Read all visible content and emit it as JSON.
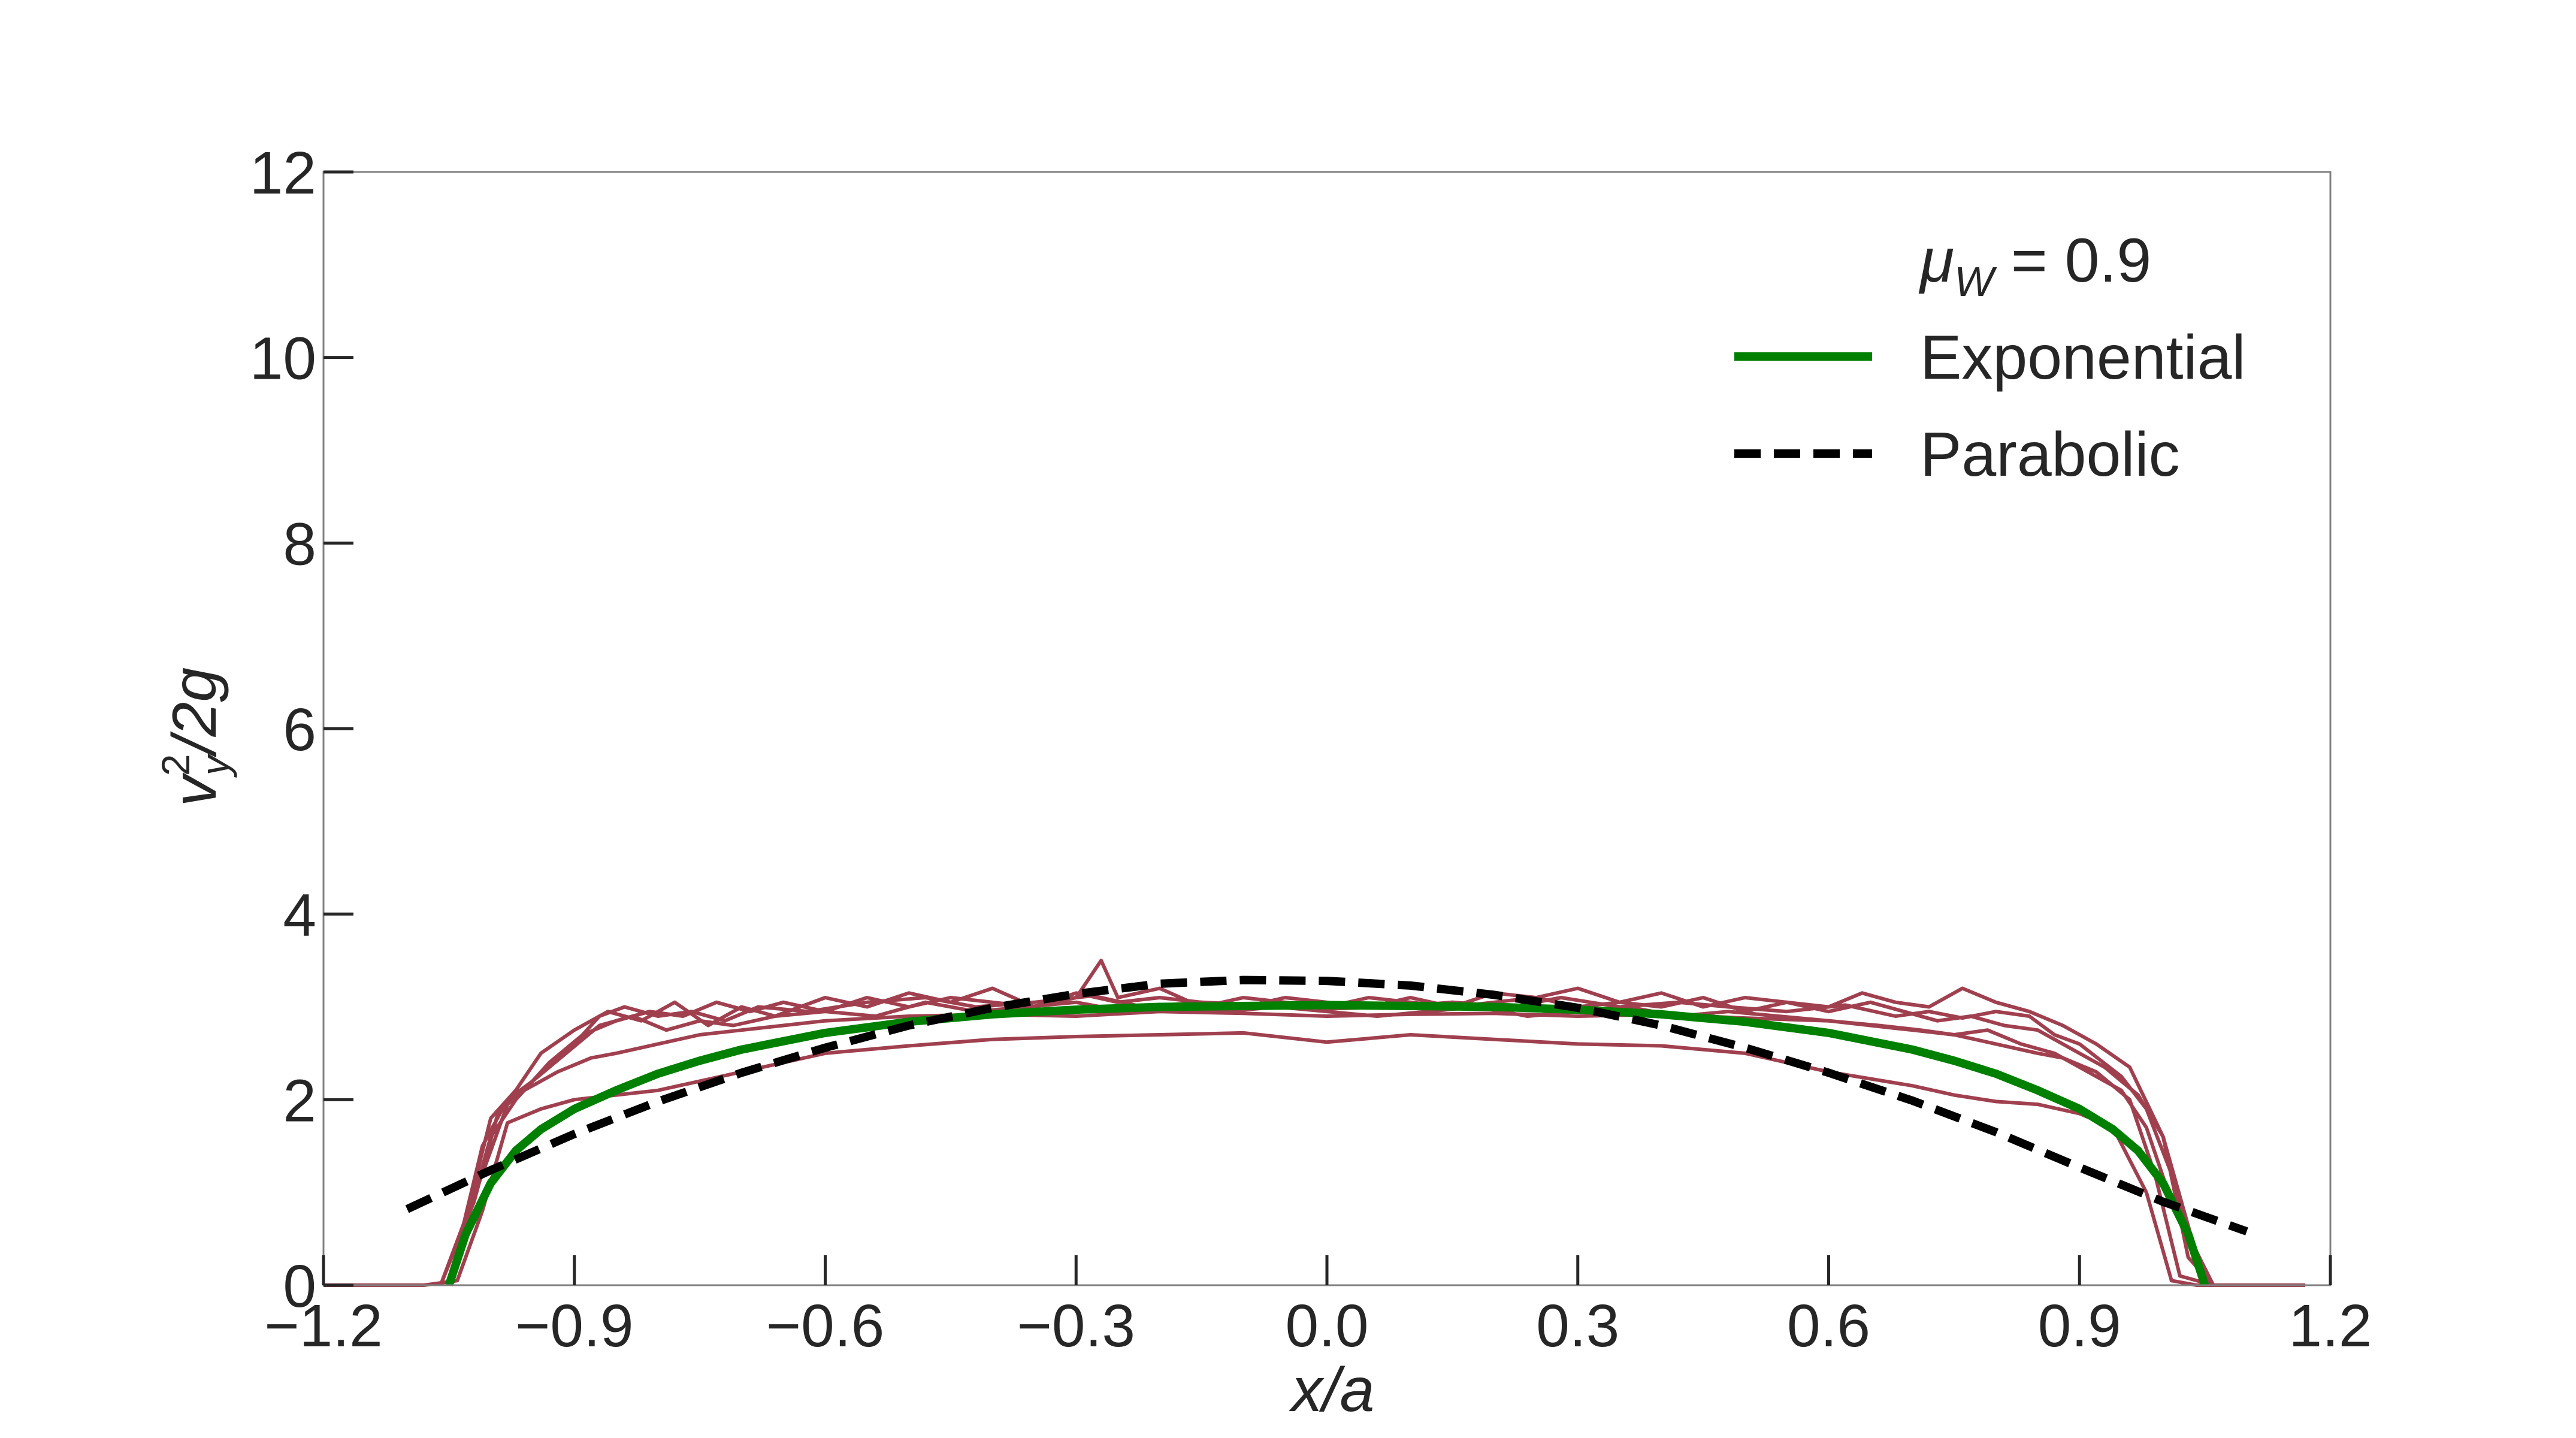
{
  "chart_data": {
    "type": "line",
    "xlabel": "x/a",
    "ylabel": "v_y^2/2g",
    "xlim": [
      -1.2,
      1.2
    ],
    "ylim": [
      0,
      12
    ],
    "xticks": [
      "−1.2",
      "−0.9",
      "−0.6",
      "−0.3",
      "0.0",
      "0.3",
      "0.6",
      "0.9",
      "1.2"
    ],
    "yticks": [
      "0",
      "2",
      "4",
      "6",
      "8",
      "10",
      "12"
    ],
    "grid": false,
    "legend": {
      "placement": "top-right",
      "title": "μ_W = 0.9",
      "entries": [
        "Exponential",
        "Parabolic"
      ]
    },
    "colors": {
      "simulation": "#a0404f",
      "exponential": "#008000",
      "parabolic": "#000000",
      "axes": "#262626",
      "frame": "#808080"
    },
    "series": [
      {
        "name": "Exponential",
        "style": "solid",
        "x": [
          -1.05,
          -1.03,
          -1.0,
          -0.97,
          -0.94,
          -0.9,
          -0.85,
          -0.8,
          -0.75,
          -0.7,
          -0.6,
          -0.5,
          -0.4,
          -0.3,
          -0.2,
          -0.1,
          0.0,
          0.1,
          0.2,
          0.3,
          0.4,
          0.5,
          0.6,
          0.7,
          0.75,
          0.8,
          0.85,
          0.9,
          0.94,
          0.97,
          1.0,
          1.03,
          1.05
        ],
        "y": [
          0.0,
          0.55,
          1.1,
          1.45,
          1.68,
          1.9,
          2.1,
          2.28,
          2.42,
          2.54,
          2.72,
          2.84,
          2.92,
          2.97,
          3.0,
          3.01,
          3.02,
          3.01,
          3.0,
          2.97,
          2.92,
          2.84,
          2.72,
          2.54,
          2.42,
          2.28,
          2.1,
          1.9,
          1.68,
          1.45,
          1.1,
          0.55,
          0.0
        ]
      },
      {
        "name": "Parabolic",
        "style": "dashed",
        "x": [
          -1.1,
          -1.0,
          -0.9,
          -0.8,
          -0.7,
          -0.6,
          -0.5,
          -0.4,
          -0.3,
          -0.2,
          -0.1,
          0.0,
          0.1,
          0.2,
          0.3,
          0.4,
          0.5,
          0.6,
          0.7,
          0.8,
          0.9,
          1.0,
          1.1
        ],
        "y": [
          0.82,
          1.24,
          1.63,
          1.98,
          2.29,
          2.56,
          2.8,
          2.99,
          3.14,
          3.25,
          3.29,
          3.28,
          3.23,
          3.13,
          2.99,
          2.8,
          2.56,
          2.29,
          1.99,
          1.65,
          1.27,
          0.9,
          0.58
        ]
      },
      {
        "style": "simulation",
        "x": [
          -1.2,
          -1.08,
          -1.04,
          -1.01,
          -0.98,
          -0.94,
          -0.9,
          -0.85,
          -0.8,
          -0.75,
          -0.7,
          -0.6,
          -0.5,
          -0.4,
          -0.3,
          -0.2,
          -0.1,
          0.0,
          0.1,
          0.2,
          0.3,
          0.4,
          0.5,
          0.6,
          0.7,
          0.75,
          0.8,
          0.85,
          0.9,
          0.94,
          0.98,
          1.01,
          1.04,
          1.08,
          1.17
        ],
        "y": [
          0.0,
          0.0,
          0.05,
          0.8,
          1.75,
          1.9,
          2.0,
          2.05,
          2.1,
          2.2,
          2.3,
          2.5,
          2.58,
          2.65,
          2.68,
          2.7,
          2.72,
          2.62,
          2.7,
          2.65,
          2.6,
          2.58,
          2.5,
          2.3,
          2.15,
          2.05,
          1.98,
          1.95,
          1.85,
          1.7,
          1.0,
          0.05,
          0.0,
          0.0,
          0.0
        ]
      },
      {
        "style": "simulation",
        "x": [
          -1.06,
          -1.02,
          -0.99,
          -0.96,
          -0.92,
          -0.88,
          -0.85,
          -0.8,
          -0.75,
          -0.7,
          -0.65,
          -0.6,
          -0.5,
          -0.4,
          -0.3,
          -0.2,
          -0.1,
          0.0,
          0.1,
          0.2,
          0.3,
          0.4,
          0.5,
          0.6,
          0.65,
          0.7,
          0.75,
          0.8,
          0.85,
          0.88,
          0.92,
          0.96,
          0.99,
          1.02,
          1.06
        ],
        "y": [
          0.0,
          0.9,
          1.9,
          2.1,
          2.3,
          2.45,
          2.5,
          2.6,
          2.7,
          2.75,
          2.8,
          2.85,
          2.9,
          2.92,
          2.9,
          2.95,
          2.93,
          2.9,
          2.92,
          2.93,
          2.9,
          2.92,
          2.88,
          2.85,
          2.8,
          2.75,
          2.7,
          2.6,
          2.5,
          2.45,
          2.3,
          2.0,
          1.2,
          0.1,
          0.0
        ]
      },
      {
        "style": "simulation",
        "x": [
          -1.05,
          -1.01,
          -0.98,
          -0.95,
          -0.9,
          -0.87,
          -0.84,
          -0.8,
          -0.76,
          -0.72,
          -0.68,
          -0.62,
          -0.55,
          -0.48,
          -0.42,
          -0.35,
          -0.28,
          -0.22,
          -0.15,
          -0.08,
          0.0,
          0.08,
          0.15,
          0.22,
          0.28,
          0.35,
          0.42,
          0.48,
          0.55,
          0.62,
          0.68,
          0.72,
          0.76,
          0.8,
          0.84,
          0.87,
          0.9,
          0.95,
          0.98,
          1.01,
          1.05
        ],
        "y": [
          0.0,
          1.5,
          2.0,
          2.2,
          2.6,
          2.9,
          3.0,
          2.9,
          2.95,
          2.85,
          3.0,
          2.95,
          3.05,
          3.1,
          3.0,
          3.05,
          3.12,
          3.0,
          3.05,
          3.02,
          2.98,
          3.0,
          3.05,
          3.0,
          3.1,
          3.0,
          3.05,
          3.0,
          2.95,
          3.02,
          2.9,
          2.95,
          2.88,
          2.95,
          2.9,
          2.7,
          2.6,
          2.25,
          1.9,
          1.2,
          0.0
        ]
      },
      {
        "style": "simulation",
        "x": [
          -1.05,
          -1.0,
          -0.97,
          -0.94,
          -0.9,
          -0.86,
          -0.82,
          -0.78,
          -0.74,
          -0.7,
          -0.66,
          -0.6,
          -0.55,
          -0.5,
          -0.45,
          -0.4,
          -0.35,
          -0.3,
          -0.27,
          -0.25,
          -0.2,
          -0.15,
          -0.1,
          -0.05,
          0.0,
          0.05,
          0.1,
          0.15,
          0.2,
          0.25,
          0.3,
          0.35,
          0.4,
          0.45,
          0.5,
          0.55,
          0.6,
          0.64,
          0.68,
          0.72,
          0.76,
          0.8,
          0.84,
          0.88,
          0.92,
          0.96,
          1.0,
          1.03,
          1.06
        ],
        "y": [
          0.0,
          1.8,
          2.1,
          2.5,
          2.75,
          2.95,
          2.85,
          3.05,
          2.8,
          3.0,
          2.9,
          3.1,
          3.0,
          3.15,
          3.05,
          3.2,
          3.0,
          3.1,
          3.5,
          3.1,
          3.2,
          3.0,
          3.1,
          3.05,
          3.0,
          3.1,
          3.05,
          3.0,
          3.15,
          3.1,
          3.2,
          3.05,
          3.15,
          3.0,
          3.1,
          3.05,
          3.0,
          3.15,
          3.05,
          3.0,
          3.2,
          3.05,
          2.95,
          2.8,
          2.6,
          2.35,
          1.6,
          0.3,
          0.0
        ]
      },
      {
        "style": "simulation",
        "x": [
          -1.05,
          -1.0,
          -0.97,
          -0.93,
          -0.89,
          -0.85,
          -0.81,
          -0.77,
          -0.73,
          -0.69,
          -0.65,
          -0.6,
          -0.55,
          -0.5,
          -0.45,
          -0.4,
          -0.35,
          -0.3,
          -0.25,
          -0.2,
          -0.15,
          -0.1,
          -0.05,
          0.0,
          0.05,
          0.1,
          0.15,
          0.2,
          0.25,
          0.3,
          0.35,
          0.4,
          0.45,
          0.5,
          0.55,
          0.6,
          0.65,
          0.69,
          0.73,
          0.77,
          0.81,
          0.85,
          0.89,
          0.93,
          0.97,
          1.0,
          1.05
        ],
        "y": [
          0.0,
          1.6,
          2.0,
          2.4,
          2.7,
          2.85,
          2.95,
          2.9,
          3.05,
          2.95,
          3.05,
          2.95,
          3.1,
          3.0,
          3.1,
          3.05,
          3.0,
          3.15,
          3.05,
          3.1,
          3.05,
          3.0,
          3.1,
          3.05,
          3.0,
          3.1,
          3.0,
          3.05,
          3.1,
          3.0,
          3.05,
          3.0,
          3.1,
          2.95,
          3.05,
          2.95,
          3.05,
          2.95,
          2.85,
          2.9,
          2.8,
          2.75,
          2.55,
          2.35,
          2.05,
          1.6,
          0.0
        ]
      },
      {
        "style": "simulation",
        "x": [
          -1.06,
          -1.01,
          -0.98,
          -0.95,
          -0.91,
          -0.87,
          -0.83,
          -0.79,
          -0.75,
          -0.71,
          -0.66,
          -0.6,
          -0.54,
          -0.48,
          -0.42,
          -0.36,
          -0.3,
          -0.24,
          -0.18,
          -0.12,
          -0.06,
          0.0,
          0.06,
          0.12,
          0.18,
          0.24,
          0.3,
          0.36,
          0.42,
          0.48,
          0.54,
          0.6,
          0.66,
          0.71,
          0.75,
          0.79,
          0.83,
          0.87,
          0.91,
          0.95,
          0.98,
          1.01,
          1.06
        ],
        "y": [
          0.0,
          1.2,
          1.95,
          2.2,
          2.5,
          2.8,
          2.9,
          2.75,
          2.85,
          2.8,
          2.9,
          2.95,
          2.9,
          3.05,
          2.95,
          3.0,
          3.05,
          2.95,
          3.0,
          2.95,
          3.0,
          2.95,
          2.9,
          2.95,
          3.0,
          2.9,
          2.95,
          3.0,
          2.9,
          2.95,
          2.9,
          2.85,
          2.8,
          2.75,
          2.7,
          2.75,
          2.6,
          2.5,
          2.3,
          2.1,
          1.7,
          0.9,
          0.0
        ]
      }
    ]
  }
}
